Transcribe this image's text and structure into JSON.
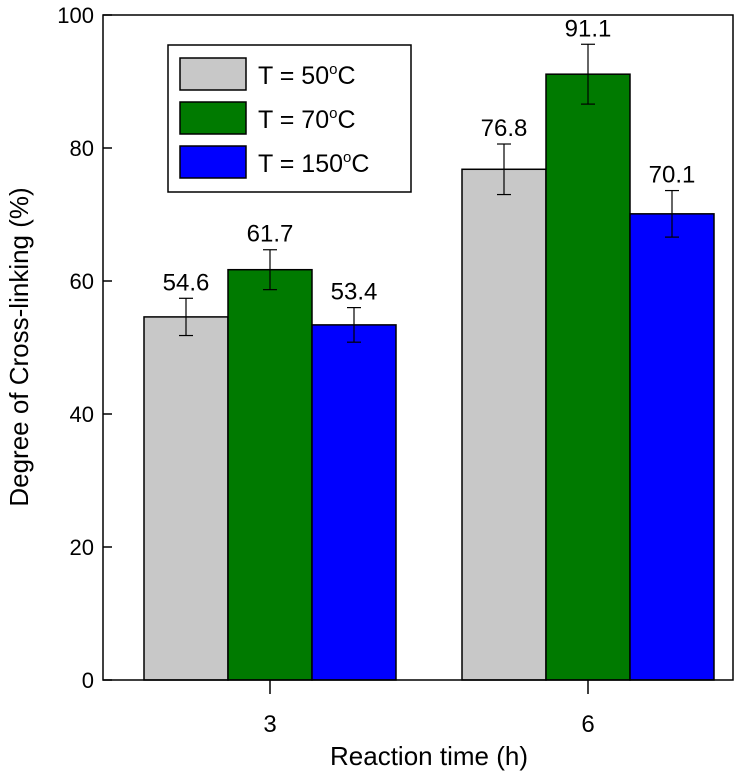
{
  "chart_data": {
    "type": "bar",
    "title": "",
    "xlabel": "Reaction time (h)",
    "ylabel": "Degree of Cross-linking (%)",
    "ylim": [
      0,
      100
    ],
    "yticks": [
      0,
      20,
      40,
      60,
      80,
      100
    ],
    "categories": [
      "3",
      "6"
    ],
    "series": [
      {
        "name": "T = 50°C",
        "legend_prefix": "T = 50",
        "legend_sup": "o",
        "legend_suffix": "C",
        "color": "#c8c8c8",
        "values": [
          54.6,
          76.8
        ],
        "errors": [
          2.8,
          3.8
        ]
      },
      {
        "name": "T = 70°C",
        "legend_prefix": "T = 70",
        "legend_sup": "o",
        "legend_suffix": "C",
        "color": "#007a00",
        "values": [
          61.7,
          91.1
        ],
        "errors": [
          3.0,
          4.5
        ]
      },
      {
        "name": "T = 150°C",
        "legend_prefix": "T = 150",
        "legend_sup": "o",
        "legend_suffix": "C",
        "color": "#0000ff",
        "values": [
          53.4,
          70.1
        ],
        "errors": [
          2.6,
          3.5
        ]
      }
    ],
    "value_labels": [
      [
        "54.6",
        "76.8"
      ],
      [
        "61.7",
        "91.1"
      ],
      [
        "53.4",
        "70.1"
      ]
    ],
    "legend_position": "top-left",
    "grid": false
  }
}
